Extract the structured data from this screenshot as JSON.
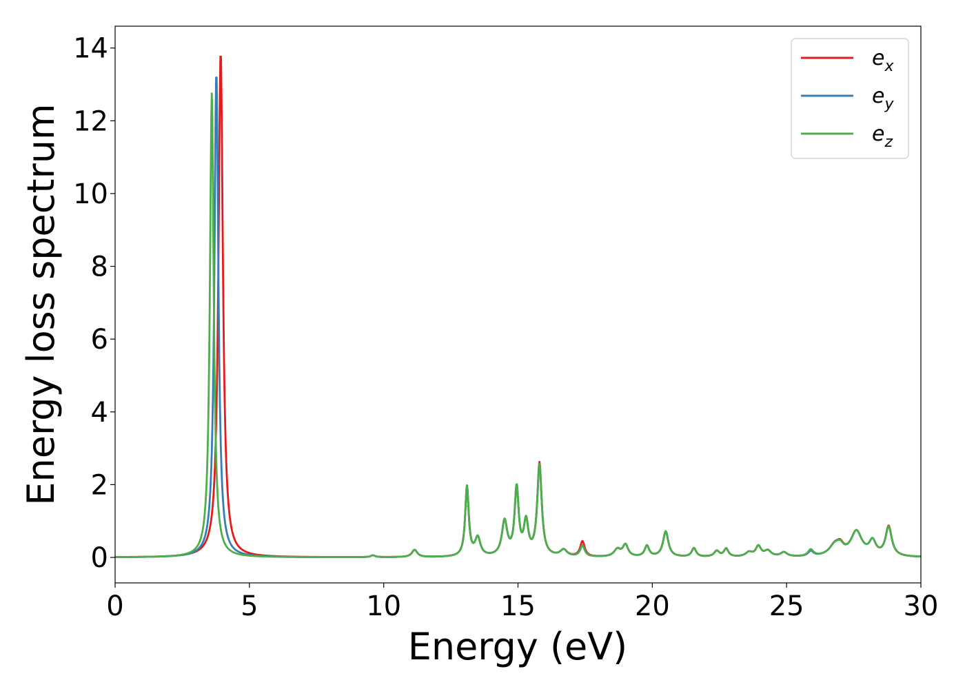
{
  "chart_data": {
    "type": "line",
    "title": "",
    "xlabel": "Energy (eV)",
    "ylabel": "Energy loss spectrum",
    "xlim": [
      0,
      30
    ],
    "ylim": [
      -0.7,
      14.6
    ],
    "xticks": [
      0,
      5,
      10,
      15,
      20,
      25,
      30
    ],
    "yticks": [
      0,
      2,
      4,
      6,
      8,
      10,
      12,
      14
    ],
    "grid": false,
    "legend_position": "top-right",
    "series": [
      {
        "name": "e",
        "subscript": "x",
        "color": "#e41a1c",
        "peaks": [
          [
            3.93,
            13.9,
            0.1
          ],
          [
            9.6,
            0.05,
            0.1
          ],
          [
            11.15,
            0.2,
            0.12
          ],
          [
            13.1,
            1.9,
            0.08
          ],
          [
            13.5,
            0.5,
            0.12
          ],
          [
            14.5,
            0.95,
            0.12
          ],
          [
            14.95,
            1.85,
            0.09
          ],
          [
            15.3,
            0.9,
            0.1
          ],
          [
            15.8,
            2.55,
            0.1
          ],
          [
            16.7,
            0.18,
            0.15
          ],
          [
            17.4,
            0.42,
            0.1
          ],
          [
            18.7,
            0.2,
            0.15
          ],
          [
            19.0,
            0.32,
            0.12
          ],
          [
            19.8,
            0.3,
            0.1
          ],
          [
            20.5,
            0.7,
            0.12
          ],
          [
            21.55,
            0.24,
            0.1
          ],
          [
            22.4,
            0.16,
            0.12
          ],
          [
            22.75,
            0.22,
            0.1
          ],
          [
            23.6,
            0.12,
            0.15
          ],
          [
            23.95,
            0.28,
            0.12
          ],
          [
            24.3,
            0.16,
            0.15
          ],
          [
            24.9,
            0.12,
            0.15
          ],
          [
            25.9,
            0.14,
            0.12
          ],
          [
            26.8,
            0.3,
            0.25
          ],
          [
            27.0,
            0.2,
            0.15
          ],
          [
            27.6,
            0.68,
            0.25
          ],
          [
            28.2,
            0.38,
            0.15
          ],
          [
            28.8,
            0.82,
            0.14
          ]
        ]
      },
      {
        "name": "e",
        "subscript": "y",
        "color": "#377eb8",
        "peaks": [
          [
            3.77,
            13.35,
            0.09
          ],
          [
            9.6,
            0.05,
            0.1
          ],
          [
            11.15,
            0.2,
            0.12
          ],
          [
            13.1,
            1.92,
            0.08
          ],
          [
            13.5,
            0.5,
            0.12
          ],
          [
            14.5,
            0.95,
            0.12
          ],
          [
            14.95,
            1.85,
            0.09
          ],
          [
            15.3,
            0.9,
            0.1
          ],
          [
            15.8,
            2.5,
            0.1
          ],
          [
            16.7,
            0.18,
            0.15
          ],
          [
            17.4,
            0.3,
            0.1
          ],
          [
            18.7,
            0.2,
            0.15
          ],
          [
            19.0,
            0.32,
            0.12
          ],
          [
            19.8,
            0.3,
            0.1
          ],
          [
            20.5,
            0.7,
            0.12
          ],
          [
            21.55,
            0.24,
            0.1
          ],
          [
            22.4,
            0.16,
            0.12
          ],
          [
            22.75,
            0.22,
            0.1
          ],
          [
            23.6,
            0.12,
            0.15
          ],
          [
            23.95,
            0.28,
            0.12
          ],
          [
            24.3,
            0.16,
            0.15
          ],
          [
            24.9,
            0.12,
            0.15
          ],
          [
            25.9,
            0.14,
            0.12
          ],
          [
            26.8,
            0.3,
            0.25
          ],
          [
            27.0,
            0.18,
            0.15
          ],
          [
            27.6,
            0.68,
            0.25
          ],
          [
            28.2,
            0.38,
            0.15
          ],
          [
            28.8,
            0.8,
            0.14
          ]
        ]
      },
      {
        "name": "e",
        "subscript": "z",
        "color": "#4daf4a",
        "peaks": [
          [
            3.6,
            12.75,
            0.085
          ],
          [
            9.6,
            0.05,
            0.1
          ],
          [
            11.15,
            0.2,
            0.12
          ],
          [
            13.1,
            1.92,
            0.08
          ],
          [
            13.5,
            0.5,
            0.12
          ],
          [
            14.5,
            0.95,
            0.12
          ],
          [
            14.95,
            1.85,
            0.09
          ],
          [
            15.3,
            0.9,
            0.1
          ],
          [
            15.8,
            2.5,
            0.1
          ],
          [
            16.7,
            0.18,
            0.15
          ],
          [
            17.4,
            0.3,
            0.1
          ],
          [
            18.7,
            0.2,
            0.15
          ],
          [
            19.0,
            0.32,
            0.12
          ],
          [
            19.8,
            0.3,
            0.1
          ],
          [
            20.5,
            0.7,
            0.12
          ],
          [
            21.55,
            0.24,
            0.1
          ],
          [
            22.4,
            0.16,
            0.12
          ],
          [
            22.75,
            0.22,
            0.1
          ],
          [
            23.6,
            0.12,
            0.15
          ],
          [
            23.95,
            0.28,
            0.12
          ],
          [
            24.3,
            0.16,
            0.15
          ],
          [
            24.9,
            0.12,
            0.15
          ],
          [
            25.9,
            0.18,
            0.12
          ],
          [
            26.8,
            0.3,
            0.25
          ],
          [
            27.0,
            0.18,
            0.15
          ],
          [
            27.6,
            0.68,
            0.25
          ],
          [
            28.2,
            0.38,
            0.15
          ],
          [
            28.8,
            0.8,
            0.14
          ]
        ]
      }
    ]
  }
}
